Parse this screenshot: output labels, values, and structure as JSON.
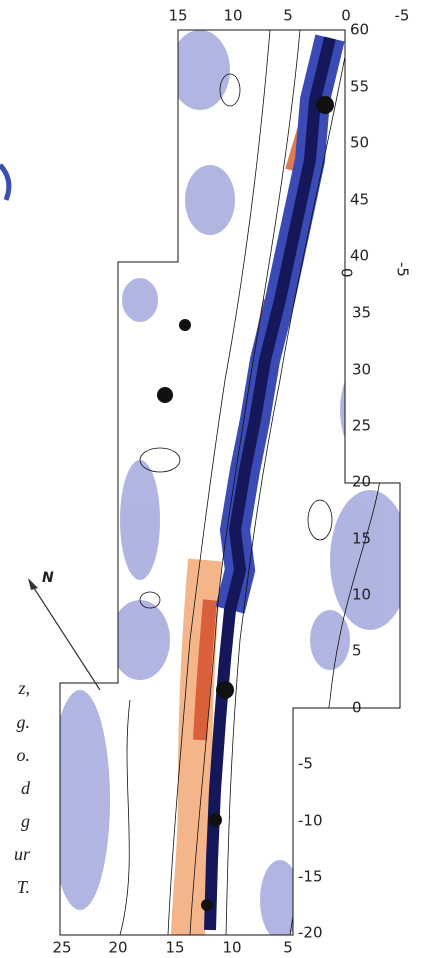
{
  "top_axis": {
    "labels": [
      "15",
      "10",
      "5",
      "0",
      "-5"
    ]
  },
  "right_axis_top": {
    "labels": [
      "60",
      "55",
      "50",
      "45",
      "40"
    ]
  },
  "top_panel_bottom": {
    "labels": [
      "0",
      "-5"
    ]
  },
  "right_axis_middle": {
    "labels": [
      "35",
      "30",
      "25",
      "20",
      "15",
      "10",
      "5",
      "0"
    ]
  },
  "right_axis_bottom": {
    "labels": [
      "-5",
      "-10",
      "-15",
      "-20"
    ]
  },
  "bottom_axis": {
    "labels": [
      "25",
      "20",
      "15",
      "10",
      "5"
    ]
  },
  "north_arrow": {
    "label": "N"
  },
  "caption_fragments": [
    "z,",
    "g.",
    "o.",
    "d",
    "g",
    "ur",
    "T."
  ]
}
